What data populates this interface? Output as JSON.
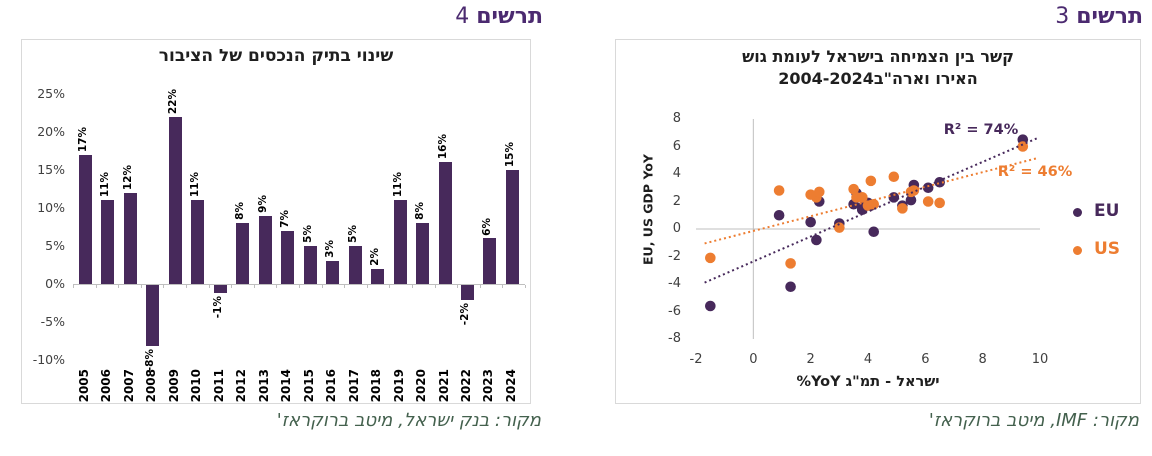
{
  "left_panel": {
    "header_word": "תרשים",
    "header_num": "4",
    "source": "מקור: בנק ישראל, מיטב ברוקראז'"
  },
  "right_panel": {
    "header_word": "תרשים",
    "header_num": "3",
    "source": "מקור: IMF, מיטב ברוקראז'"
  },
  "colors": {
    "purple": "#47295B",
    "orange": "#ED7D31",
    "header_purple": "#4B2A70",
    "source_green": "#44614E",
    "axis_gray": "#BFBFBF",
    "border_gray": "#D9D9D9"
  },
  "chart_data": [
    {
      "type": "bar",
      "title": "שינוי בתיק הנכסים של הציבור",
      "categories": [
        "2005",
        "2006",
        "2007",
        "2008",
        "2009",
        "2010",
        "2011",
        "2012",
        "2013",
        "2014",
        "2015",
        "2016",
        "2017",
        "2018",
        "2019",
        "2020",
        "2021",
        "2022",
        "2023",
        "2024"
      ],
      "values": [
        17,
        11,
        12,
        -8,
        22,
        11,
        -1,
        8,
        9,
        7,
        5,
        3,
        5,
        2,
        11,
        8,
        16,
        -2,
        6,
        15
      ],
      "value_labels": [
        "17%",
        "11%",
        "12%",
        "-8%",
        "22%",
        "11%",
        "-1%",
        "8%",
        "9%",
        "7%",
        "5%",
        "3%",
        "5%",
        "2%",
        "11%",
        "8%",
        "16%",
        "-2%",
        "6%",
        "15%"
      ],
      "ytick_labels": [
        "25%",
        "20%",
        "15%",
        "10%",
        "5%",
        "0%",
        "-5%",
        "-10%"
      ],
      "ylim": [
        -10,
        25
      ],
      "grid": "off",
      "bar_color_key": "purple"
    },
    {
      "type": "scatter",
      "title_lines": [
        "קשר בין הצמיחה בישראל לעומת גוש",
        "האירו וארה\"ב2004-2024"
      ],
      "xlabel_he": "ישראל - תמ\"ג",
      "xlabel_en": "%YoY",
      "ylabel": "EU, US GDP YoY",
      "xlim": [
        -2,
        10
      ],
      "ylim": [
        -8,
        8
      ],
      "xticks": [
        "-2",
        "0",
        "2",
        "4",
        "6",
        "8",
        "10"
      ],
      "yticks": [
        "8",
        "6",
        "4",
        "2",
        "0",
        "-2",
        "-4",
        "-6",
        "-8"
      ],
      "legend_position": "right",
      "series": [
        {
          "name": "EU",
          "color_key": "purple",
          "r2_label": "R² = 74%",
          "points": [
            [
              4.9,
              2.3
            ],
            [
              4.1,
              1.7
            ],
            [
              5.6,
              3.2
            ],
            [
              6.1,
              3.0
            ],
            [
              3.0,
              0.4
            ],
            [
              1.3,
              -4.2
            ],
            [
              5.5,
              2.1
            ],
            [
              5.2,
              1.7
            ],
            [
              2.2,
              -0.8
            ],
            [
              4.2,
              -0.2
            ],
            [
              3.8,
              1.4
            ],
            [
              2.3,
              2.0
            ],
            [
              4.0,
              1.9
            ],
            [
              3.6,
              2.6
            ],
            [
              3.5,
              1.8
            ],
            [
              3.8,
              1.6
            ],
            [
              -1.5,
              -5.6
            ],
            [
              9.4,
              6.5
            ],
            [
              6.5,
              3.4
            ],
            [
              2.0,
              0.5
            ],
            [
              0.9,
              1.0
            ]
          ],
          "trend": {
            "x1": -1.7,
            "y1": -3.9,
            "x2": 9.9,
            "y2": 6.6
          }
        },
        {
          "name": "US",
          "color_key": "orange",
          "r2_label": "R² = 46%",
          "points": [
            [
              4.9,
              3.8
            ],
            [
              4.1,
              3.5
            ],
            [
              5.6,
              2.8
            ],
            [
              6.1,
              2.0
            ],
            [
              3.0,
              0.1
            ],
            [
              1.3,
              -2.5
            ],
            [
              5.5,
              2.7
            ],
            [
              5.2,
              1.5
            ],
            [
              2.2,
              2.3
            ],
            [
              4.2,
              1.8
            ],
            [
              3.8,
              2.3
            ],
            [
              2.3,
              2.7
            ],
            [
              4.0,
              1.7
            ],
            [
              3.6,
              2.3
            ],
            [
              3.5,
              2.9
            ],
            [
              3.8,
              2.3
            ],
            [
              -1.5,
              -2.1
            ],
            [
              9.4,
              6.0
            ],
            [
              6.5,
              1.9
            ],
            [
              2.0,
              2.5
            ],
            [
              0.9,
              2.8
            ]
          ],
          "trend": {
            "x1": -1.7,
            "y1": -1.05,
            "x2": 9.9,
            "y2": 5.15
          }
        }
      ]
    }
  ]
}
